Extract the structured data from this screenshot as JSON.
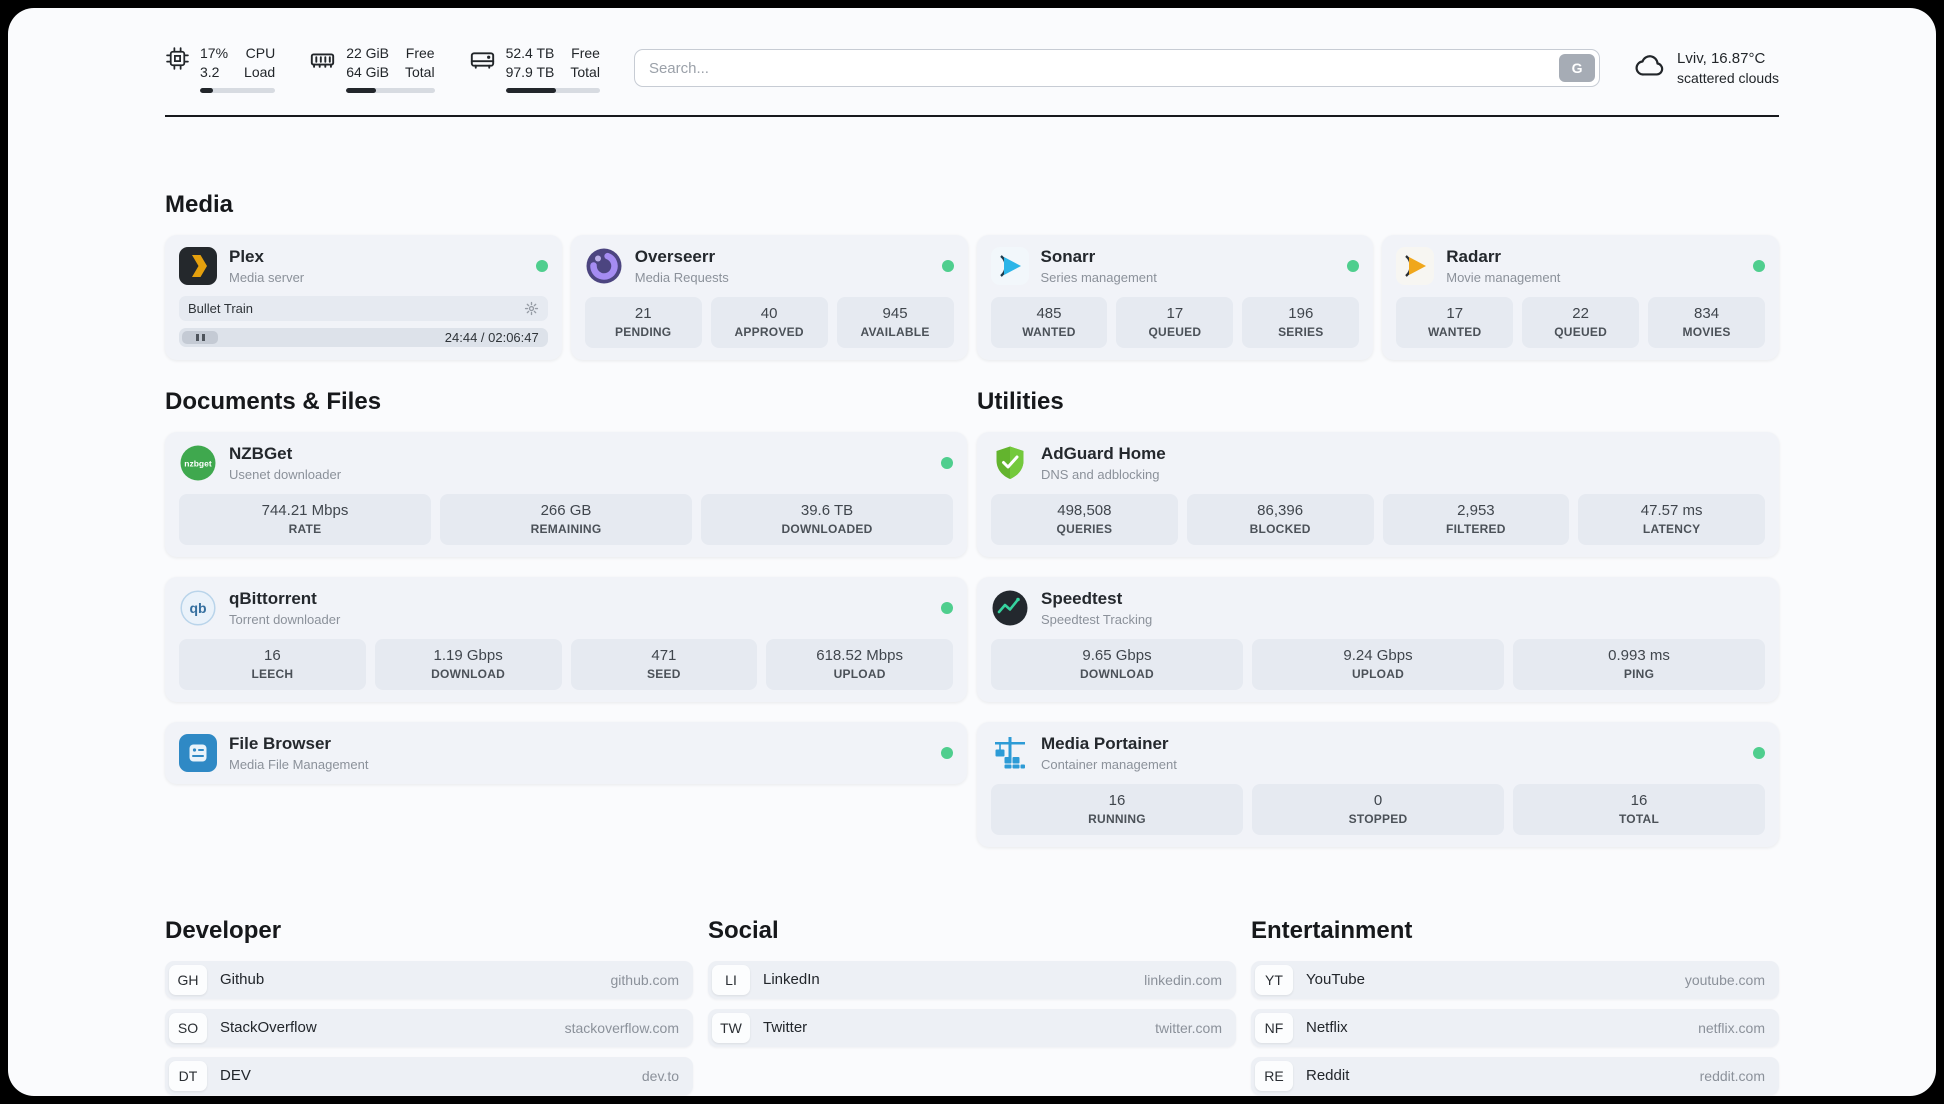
{
  "header": {
    "cpu": {
      "value_top": "17%",
      "value_bottom": "3.2",
      "label_top": "CPU",
      "label_bottom": "Load",
      "percent": 17
    },
    "ram": {
      "value_top": "22 GiB",
      "value_bottom": "64 GiB",
      "label_top": "Free",
      "label_bottom": "Total",
      "percent": 34
    },
    "disk": {
      "value_top": "52.4 TB",
      "value_bottom": "97.9 TB",
      "label_top": "Free",
      "label_bottom": "Total",
      "percent": 53
    },
    "search": {
      "placeholder": "Search...",
      "button_label": "G"
    },
    "weather": {
      "location": "Lviv, 16.87°C",
      "condition": "scattered clouds"
    }
  },
  "sections": {
    "media": "Media",
    "documents": "Documents & Files",
    "utilities": "Utilities",
    "developer": "Developer",
    "social": "Social",
    "entertainment": "Entertainment"
  },
  "services": {
    "plex": {
      "title": "Plex",
      "subtitle": "Media server",
      "now_playing": "Bullet Train",
      "time": "24:44 / 02:06:47"
    },
    "overseerr": {
      "title": "Overseerr",
      "subtitle": "Media Requests",
      "stats": [
        {
          "value": "21",
          "label": "PENDING"
        },
        {
          "value": "40",
          "label": "APPROVED"
        },
        {
          "value": "945",
          "label": "AVAILABLE"
        }
      ]
    },
    "sonarr": {
      "title": "Sonarr",
      "subtitle": "Series management",
      "stats": [
        {
          "value": "485",
          "label": "WANTED"
        },
        {
          "value": "17",
          "label": "QUEUED"
        },
        {
          "value": "196",
          "label": "SERIES"
        }
      ]
    },
    "radarr": {
      "title": "Radarr",
      "subtitle": "Movie management",
      "stats": [
        {
          "value": "17",
          "label": "WANTED"
        },
        {
          "value": "22",
          "label": "QUEUED"
        },
        {
          "value": "834",
          "label": "MOVIES"
        }
      ]
    },
    "nzbget": {
      "title": "NZBGet",
      "subtitle": "Usenet downloader",
      "stats": [
        {
          "value": "744.21 Mbps",
          "label": "RATE"
        },
        {
          "value": "266 GB",
          "label": "REMAINING"
        },
        {
          "value": "39.6 TB",
          "label": "DOWNLOADED"
        }
      ]
    },
    "qbittorrent": {
      "title": "qBittorrent",
      "subtitle": "Torrent downloader",
      "stats": [
        {
          "value": "16",
          "label": "LEECH"
        },
        {
          "value": "1.19 Gbps",
          "label": "DOWNLOAD"
        },
        {
          "value": "471",
          "label": "SEED"
        },
        {
          "value": "618.52 Mbps",
          "label": "UPLOAD"
        }
      ]
    },
    "filebrowser": {
      "title": "File Browser",
      "subtitle": "Media File Management"
    },
    "adguard": {
      "title": "AdGuard Home",
      "subtitle": "DNS and adblocking",
      "stats": [
        {
          "value": "498,508",
          "label": "QUERIES"
        },
        {
          "value": "86,396",
          "label": "BLOCKED"
        },
        {
          "value": "2,953",
          "label": "FILTERED"
        },
        {
          "value": "47.57 ms",
          "label": "LATENCY"
        }
      ]
    },
    "speedtest": {
      "title": "Speedtest",
      "subtitle": "Speedtest Tracking",
      "stats": [
        {
          "value": "9.65 Gbps",
          "label": "DOWNLOAD"
        },
        {
          "value": "9.24 Gbps",
          "label": "UPLOAD"
        },
        {
          "value": "0.993 ms",
          "label": "PING"
        }
      ]
    },
    "portainer": {
      "title": "Media Portainer",
      "subtitle": "Container management",
      "stats": [
        {
          "value": "16",
          "label": "RUNNING"
        },
        {
          "value": "0",
          "label": "STOPPED"
        },
        {
          "value": "16",
          "label": "TOTAL"
        }
      ]
    }
  },
  "bookmarks": {
    "developer": [
      {
        "abbr": "GH",
        "name": "Github",
        "url": "github.com"
      },
      {
        "abbr": "SO",
        "name": "StackOverflow",
        "url": "stackoverflow.com"
      },
      {
        "abbr": "DT",
        "name": "DEV",
        "url": "dev.to"
      }
    ],
    "social": [
      {
        "abbr": "LI",
        "name": "LinkedIn",
        "url": "linkedin.com"
      },
      {
        "abbr": "TW",
        "name": "Twitter",
        "url": "twitter.com"
      }
    ],
    "entertainment": [
      {
        "abbr": "YT",
        "name": "YouTube",
        "url": "youtube.com"
      },
      {
        "abbr": "NF",
        "name": "Netflix",
        "url": "netflix.com"
      },
      {
        "abbr": "RE",
        "name": "Reddit",
        "url": "reddit.com"
      }
    ]
  },
  "colors": {
    "status_online": "#4fce8e",
    "accent_plex": "#e5a00d"
  }
}
